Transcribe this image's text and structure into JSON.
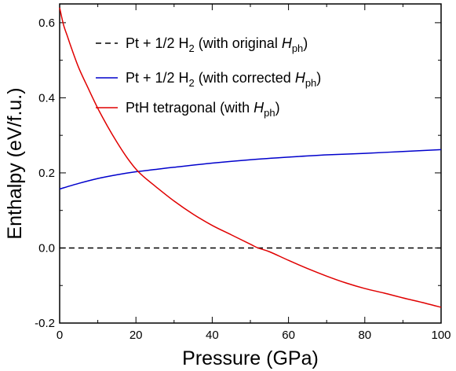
{
  "chart_data": {
    "type": "line",
    "title": "",
    "xlabel": "Pressure (GPa)",
    "ylabel": "Enthalpy (eV/f.u.)",
    "xlim": [
      0,
      100
    ],
    "ylim": [
      -0.2,
      0.65
    ],
    "xticks": [
      0,
      20,
      40,
      60,
      80,
      100
    ],
    "yticks": [
      -0.2,
      0.0,
      0.2,
      0.4,
      0.6
    ],
    "xtick_labels": [
      "0",
      "20",
      "40",
      "60",
      "80",
      "100"
    ],
    "ytick_labels": [
      "-0.2",
      "0.0",
      "0.2",
      "0.4",
      "0.6"
    ],
    "grid": false,
    "legend_position": "top-right",
    "series": [
      {
        "name": "Pt + 1/2 H2 (with original Hph)",
        "legend": {
          "main": "Pt + 1/2 H",
          "sub": "2",
          "rest": " (with original ",
          "italic": "H",
          "italic_sub": "ph",
          "close": ")"
        },
        "color": "#000000",
        "dash": "dashed",
        "x": [
          0,
          100
        ],
        "y": [
          0.0,
          0.0
        ]
      },
      {
        "name": "Pt + 1/2 H2 (with corrected Hph)",
        "legend": {
          "main": "Pt + 1/2 H",
          "sub": "2",
          "rest": " (with corrected ",
          "italic": "H",
          "italic_sub": "ph",
          "close": ")"
        },
        "color": "#0000cc",
        "dash": "solid",
        "x": [
          0,
          5,
          10,
          15,
          20,
          25,
          30,
          40,
          50,
          60,
          70,
          80,
          90,
          100
        ],
        "y": [
          0.157,
          0.172,
          0.185,
          0.195,
          0.203,
          0.209,
          0.215,
          0.226,
          0.235,
          0.242,
          0.248,
          0.252,
          0.257,
          0.262
        ]
      },
      {
        "name": "PtH tetragonal (with Hph)",
        "legend": {
          "main": "PtH tetragonal",
          "sub": "",
          "rest": " (with ",
          "italic": "H",
          "italic_sub": "ph",
          "close": ")"
        },
        "color": "#e00000",
        "dash": "solid",
        "x": [
          0,
          1,
          2,
          3,
          5,
          7.5,
          10,
          12.5,
          15,
          17.5,
          20,
          22,
          25,
          30,
          35,
          40,
          45,
          50,
          52,
          55,
          60,
          65,
          70,
          75,
          80,
          85,
          90,
          95,
          100
        ],
        "y": [
          0.64,
          0.595,
          0.565,
          0.535,
          0.48,
          0.425,
          0.372,
          0.325,
          0.282,
          0.243,
          0.21,
          0.19,
          0.165,
          0.125,
          0.09,
          0.06,
          0.035,
          0.01,
          0.0,
          -0.01,
          -0.033,
          -0.055,
          -0.075,
          -0.093,
          -0.108,
          -0.12,
          -0.133,
          -0.145,
          -0.158
        ]
      }
    ]
  }
}
